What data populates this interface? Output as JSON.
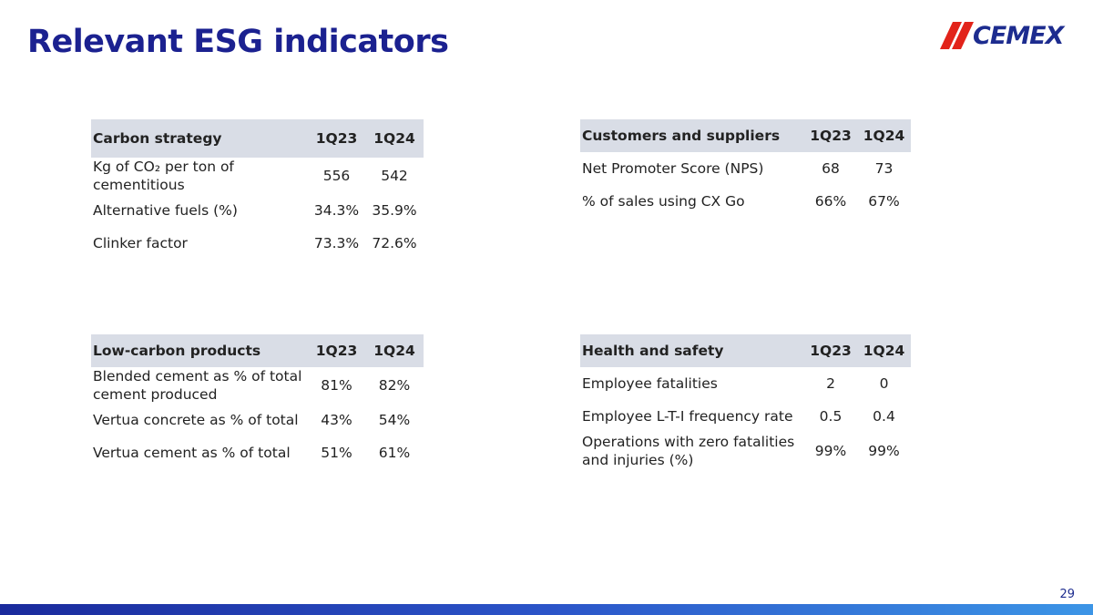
{
  "header": {
    "title": "Relevant ESG indicators",
    "logo": "CEMEX"
  },
  "tables": [
    {
      "header": [
        "Carbon strategy",
        "1Q23",
        "1Q24"
      ],
      "rows": [
        [
          "Kg of CO₂ per ton of cementitious",
          "556",
          "542"
        ],
        [
          "Alternative fuels (%)",
          "34.3%",
          "35.9%"
        ],
        [
          "Clinker factor",
          "73.3%",
          "72.6%"
        ]
      ]
    },
    {
      "header": [
        "Customers and suppliers",
        "1Q23",
        "1Q24"
      ],
      "rows": [
        [
          "Net Promoter Score (NPS)",
          "68",
          "73"
        ],
        [
          "% of sales using CX Go",
          "66%",
          "67%"
        ]
      ]
    },
    {
      "header": [
        "Low-carbon products",
        "1Q23",
        "1Q24"
      ],
      "rows": [
        [
          "Blended cement as % of total cement produced",
          "81%",
          "82%"
        ],
        [
          "Vertua concrete as % of total",
          "43%",
          "54%"
        ],
        [
          "Vertua cement as % of total",
          "51%",
          "61%"
        ]
      ]
    },
    {
      "header": [
        "Health and safety",
        "1Q23",
        "1Q24"
      ],
      "rows": [
        [
          "Employee fatalities",
          "2",
          "0"
        ],
        [
          "Employee L-T-I frequency rate",
          "0.5",
          "0.4"
        ],
        [
          "Operations with zero fatalities and injuries (%)",
          "99%",
          "99%"
        ]
      ]
    }
  ],
  "footer": {
    "page": "29"
  }
}
